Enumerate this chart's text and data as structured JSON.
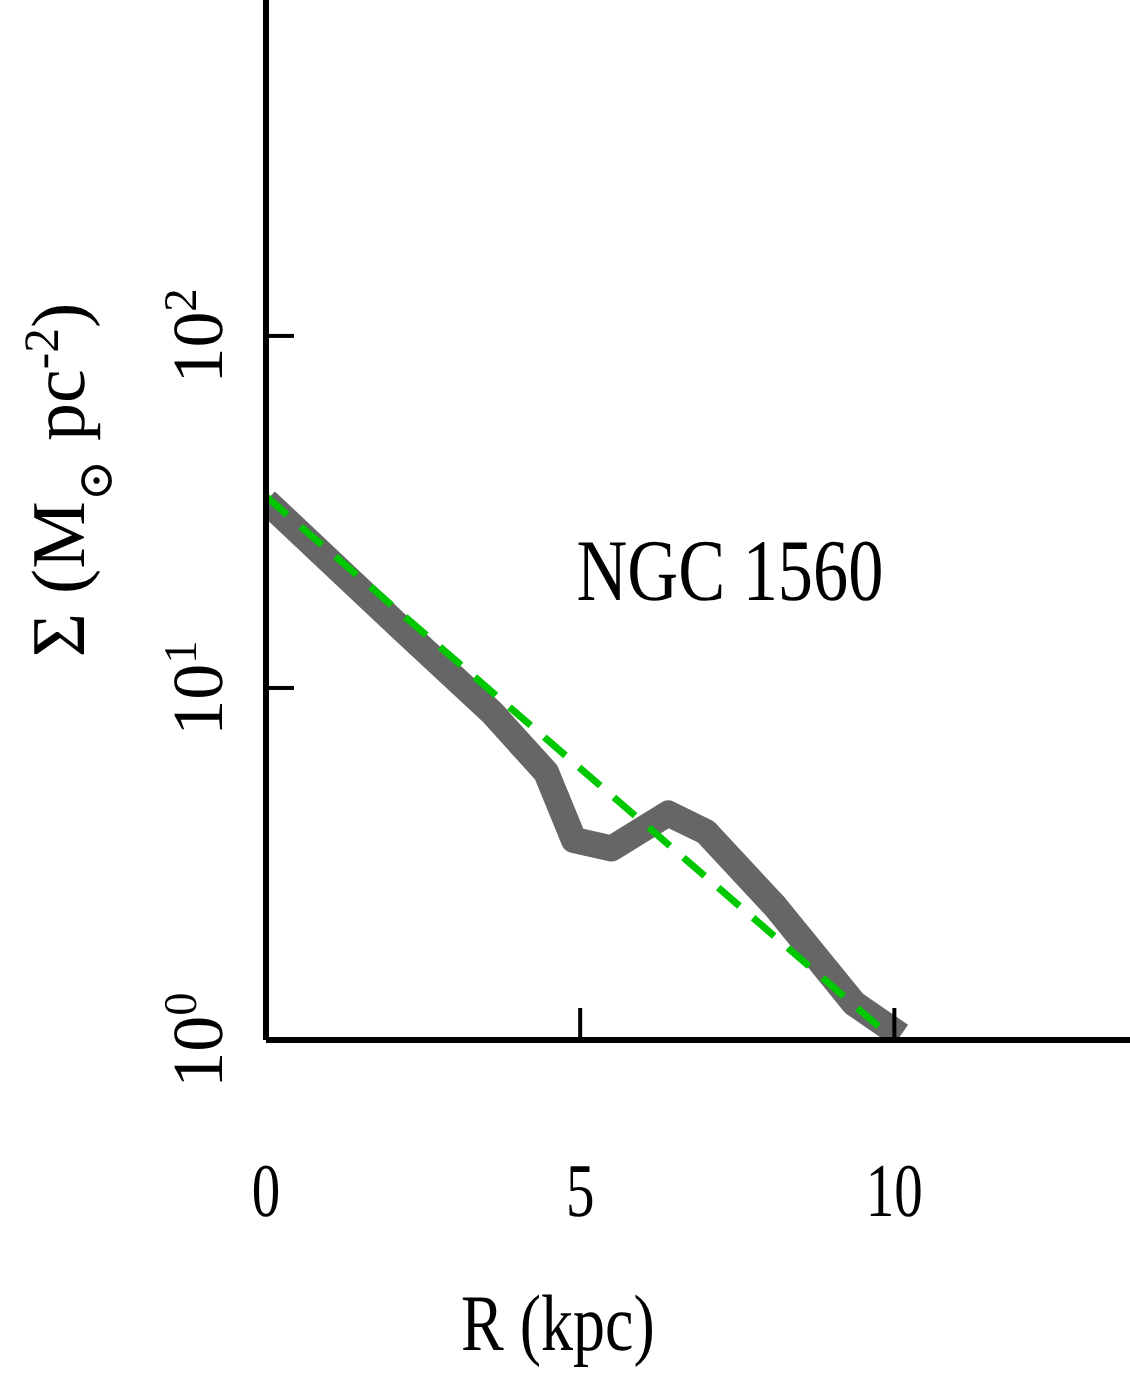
{
  "chart_data": {
    "type": "line",
    "xlabel": "R (kpc)",
    "ylabel": "Σ (M$_{⊙}$ pc$^{-2}$)",
    "annotations": [
      "NGC 1560"
    ],
    "xlim": [
      0,
      13.75
    ],
    "ylim": [
      1,
      900
    ],
    "log": "y",
    "marker": "none",
    "xticks": [
      0,
      5,
      10
    ],
    "yticks": [
      {
        "value": 1,
        "label": "10$^{0}$"
      },
      {
        "value": 10,
        "label": "10$^{1}$"
      },
      {
        "value": 100,
        "label": "10$^{2}$"
      }
    ],
    "series": [
      {
        "color": "#666666",
        "line_style": "solid",
        "x": [
          0,
          2.2,
          3.6,
          4.46,
          4.9,
          5.5,
          6.4,
          7.0,
          8.1,
          9.36,
          10.1
        ],
        "values": [
          34,
          14.5,
          8.5,
          5.75,
          3.7,
          3.5,
          4.4,
          3.9,
          2.4,
          1.27,
          1.03
        ]
      },
      {
        "color": "#00c800",
        "line_style": "dashed",
        "x": [
          0,
          10
        ],
        "values": [
          35,
          1
        ]
      }
    ]
  }
}
